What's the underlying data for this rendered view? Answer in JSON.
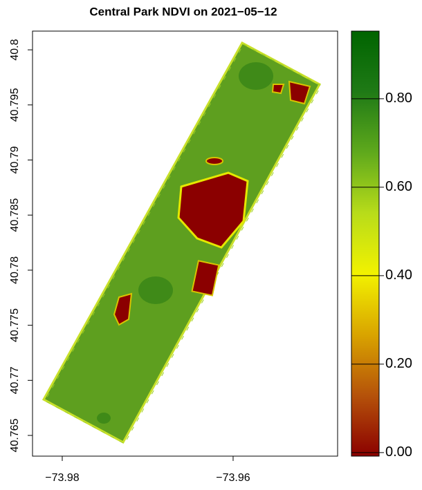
{
  "chart_data": {
    "type": "raster",
    "title": "Central Park NDVI on 2021−05−12",
    "xlim": [
      -73.98348,
      -73.94777
    ],
    "ylim": [
      40.76312,
      40.8017
    ],
    "xticks": [
      {
        "value": -73.98,
        "label": "−73.98"
      },
      {
        "value": -73.96,
        "label": "−73.96"
      }
    ],
    "yticks": [
      40.765,
      40.77,
      40.775,
      40.78,
      40.785,
      40.79,
      40.795,
      40.8
    ],
    "clim": [
      -0.008,
      0.953
    ],
    "cticks": [
      {
        "value": 0,
        "label": "0.00"
      },
      {
        "value": 0.2,
        "label": "0.20"
      },
      {
        "value": 0.4,
        "label": "0.40"
      },
      {
        "value": 0.6,
        "label": "0.60"
      },
      {
        "value": 0.8,
        "label": "0.80"
      }
    ],
    "colorscale": [
      "#8b0000",
      "#b5520a",
      "#d9a400",
      "#f2f200",
      "#b8dc1a",
      "#5fa91c",
      "#1f7a16",
      "#006400"
    ]
  }
}
